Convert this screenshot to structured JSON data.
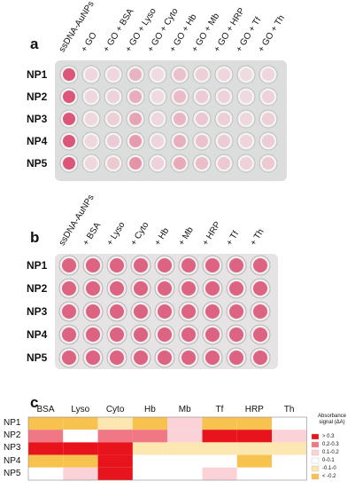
{
  "panel_a": {
    "letter": "a",
    "columns": [
      "ssDNA-AuNPs",
      "+ GO",
      "+ GO + BSA",
      "+ GO + Lyso",
      "+ GO + Cyto",
      "+ GO + Hb",
      "+ GO + Mb",
      "+ GO + HRP",
      "+ GO + Tf",
      "+ GO + Th"
    ],
    "rows": [
      "NP1",
      "NP2",
      "NP3",
      "NP4",
      "NP5"
    ]
  },
  "panel_b": {
    "letter": "b",
    "columns": [
      "ssDNA-AuNPs",
      "+ BSA",
      "+ Lyso",
      "+ Cyto",
      "+ Hb",
      "+ Mb",
      "+ HRP",
      "+ Tf",
      "+ Th"
    ],
    "rows": [
      "NP1",
      "NP2",
      "NP3",
      "NP4",
      "NP5"
    ]
  },
  "panel_c": {
    "letter": "c",
    "columns": [
      "BSA",
      "Lyso",
      "Cyto",
      "Hb",
      "Mb",
      "Tf",
      "HRP",
      "Th"
    ],
    "rows": [
      "NP1",
      "NP2",
      "NP3",
      "NP4",
      "NP5"
    ],
    "cells": [
      [
        5,
        5,
        4,
        5,
        2,
        5,
        5,
        3
      ],
      [
        1,
        3,
        1,
        1,
        2,
        0,
        0,
        2
      ],
      [
        0,
        0,
        0,
        4,
        4,
        4,
        4,
        4
      ],
      [
        5,
        5,
        0,
        3,
        3,
        3,
        5,
        3
      ],
      [
        3,
        2,
        0,
        3,
        3,
        2,
        3,
        3
      ]
    ],
    "legend_title": "Absorbance signal (ΔA)",
    "legend": [
      {
        "label": "> 0.3",
        "color": "#e8141b"
      },
      {
        "label": "0.2-0.3",
        "color": "#f07884"
      },
      {
        "label": "0.1-0.2",
        "color": "#fad2d8"
      },
      {
        "label": "0-0.1",
        "color": "#ffffff"
      },
      {
        "label": "-0.1-0",
        "color": "#fde7b0"
      },
      {
        "label": "< -0.2",
        "color": "#f7c34e"
      }
    ]
  }
}
